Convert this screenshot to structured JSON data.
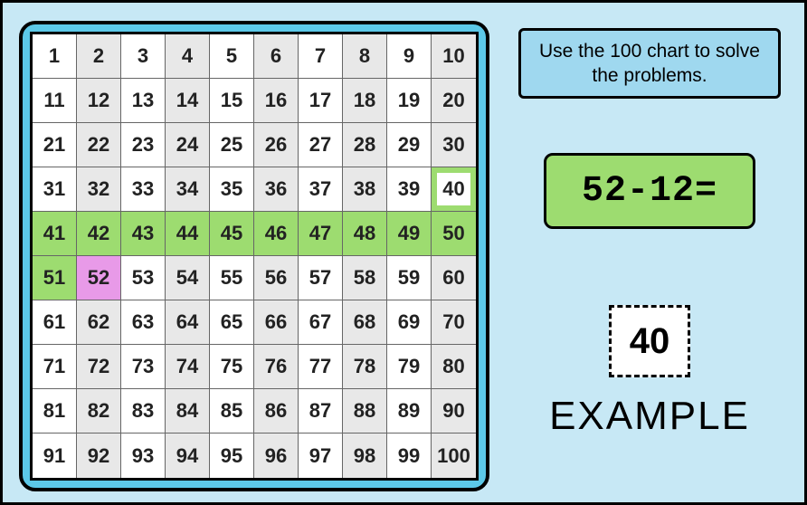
{
  "chart": {
    "rows": 10,
    "cols": 10,
    "start": 1,
    "alt_bg_white": "#ffffff",
    "alt_bg_gray": "#e8e8e8",
    "highlight_green": "#9ddc70",
    "highlight_green_border": "#4caf50",
    "highlight_magenta": "#e89ae8",
    "highlighted_green": [
      41,
      42,
      43,
      44,
      45,
      46,
      47,
      48,
      49,
      50,
      51
    ],
    "highlighted_magenta": [
      52
    ],
    "answer_cell_green_box": 40
  },
  "instruction": "Use the 100 chart to solve the problems.",
  "problem": "52-12=",
  "answer": "40",
  "example_label": "EXAMPLE",
  "colors": {
    "page_bg": "#c7e8f5",
    "chart_ring": "#5cc8e8",
    "instruction_bg": "#9fd8ef",
    "problem_bg": "#9ddc70"
  }
}
